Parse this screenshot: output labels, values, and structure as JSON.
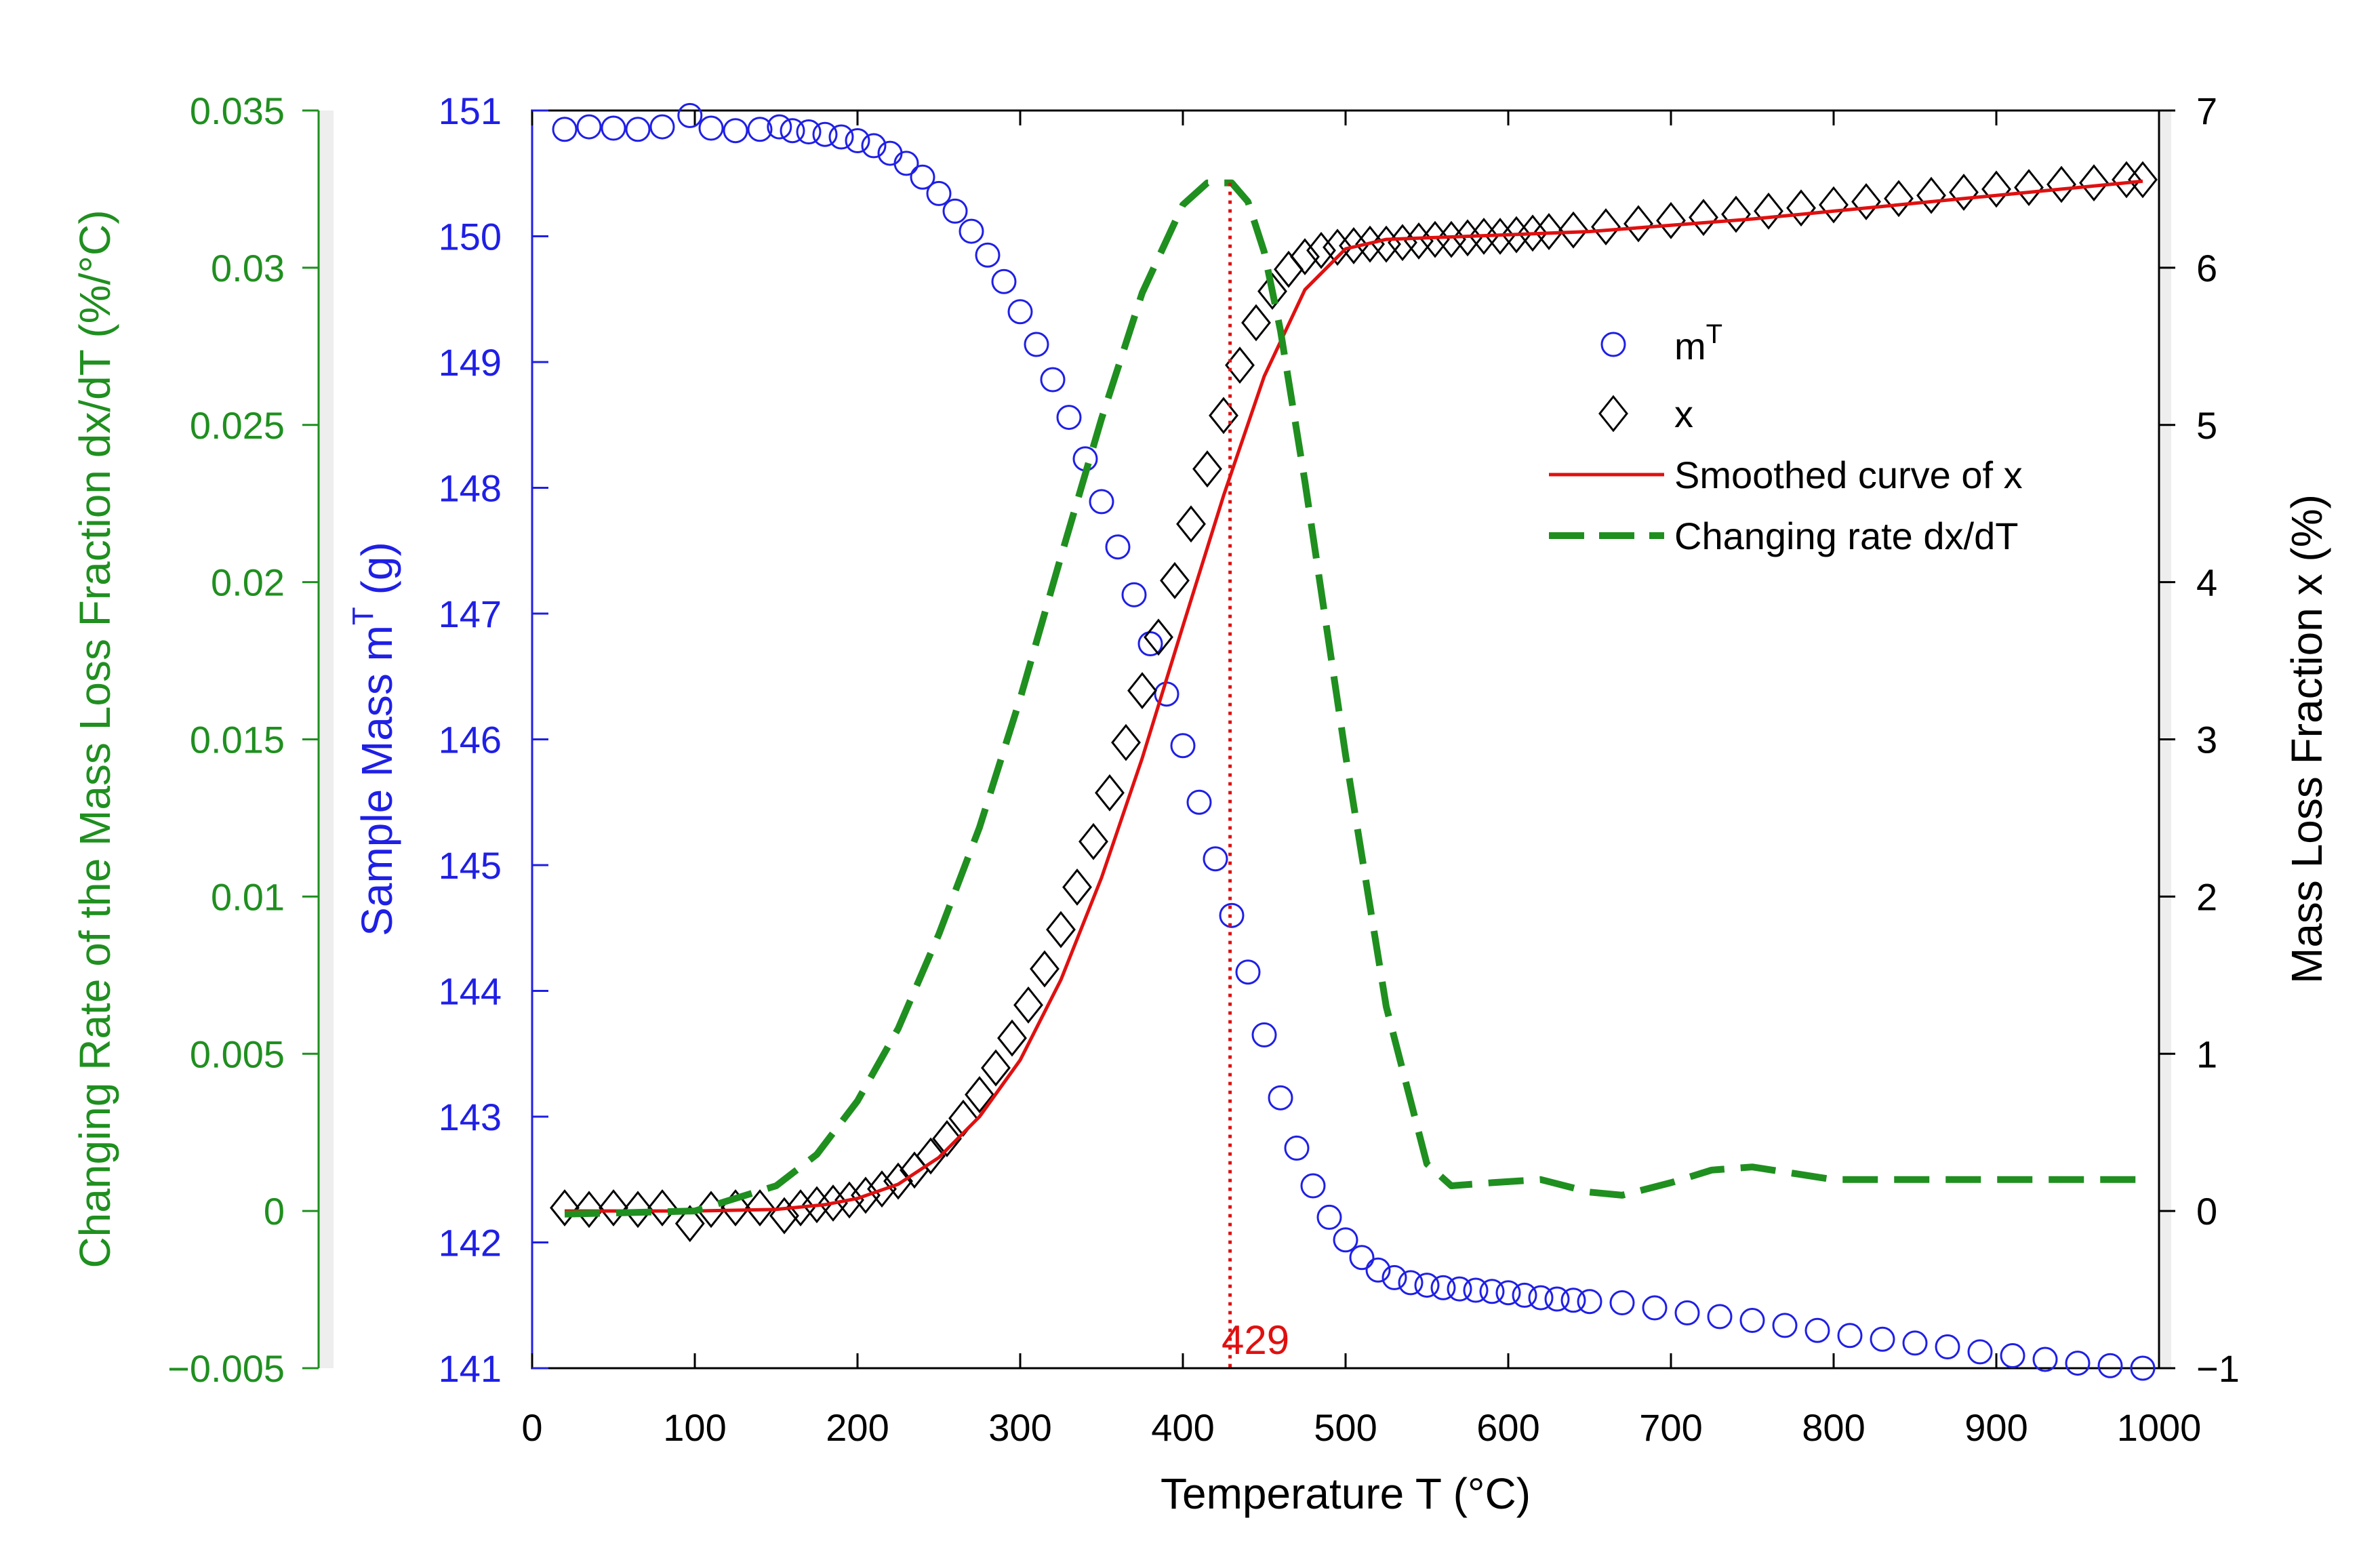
{
  "chart_data": {
    "type": "line",
    "title": "",
    "xlabel": "Temperature T (°C)",
    "xlim": [
      0,
      1000
    ],
    "x_ticks": [
      "0",
      "100",
      "200",
      "300",
      "400",
      "500",
      "600",
      "700",
      "800",
      "900",
      "1000"
    ],
    "axes": {
      "left_outer": {
        "label": "Changing Rate of the Mass Loss Fraction dx/dT (%/°C)",
        "range": [
          -0.005,
          0.035
        ],
        "ticks": [
          "−0.005",
          "0",
          "0.005",
          "0.01",
          "0.015",
          "0.02",
          "0.025",
          "0.03",
          "0.035"
        ],
        "color": "#1f8f1f"
      },
      "left_inner": {
        "label": "Sample Mass m",
        "label_sup": "T",
        "label_tail": " (g)",
        "range": [
          141,
          151
        ],
        "ticks": [
          "141",
          "142",
          "143",
          "144",
          "145",
          "146",
          "147",
          "148",
          "149",
          "150",
          "151"
        ],
        "color": "#1f1fe6"
      },
      "right": {
        "label": "Mass Loss Fraction x (%)",
        "range": [
          -1,
          7
        ],
        "ticks": [
          "−1",
          "0",
          "1",
          "2",
          "3",
          "4",
          "5",
          "6",
          "7"
        ],
        "color": "#000000"
      }
    },
    "series": [
      {
        "name": "m",
        "name_sup": "T",
        "axis": "left_inner",
        "marker": "circle",
        "color": "#1f1fe6",
        "x": [
          20,
          35,
          50,
          65,
          80,
          97,
          110,
          125,
          140,
          152,
          160,
          170,
          180,
          190,
          200,
          210,
          220,
          230,
          240,
          250,
          260,
          270,
          280,
          290,
          300,
          310,
          320,
          330,
          340,
          350,
          360,
          370,
          380,
          390,
          400,
          410,
          420,
          430,
          440,
          450,
          460,
          470,
          480,
          490,
          500,
          510,
          520,
          530,
          540,
          550,
          560,
          570,
          580,
          590,
          600,
          610,
          620,
          630,
          640,
          650,
          670,
          690,
          710,
          730,
          750,
          770,
          790,
          810,
          830,
          850,
          870,
          890,
          910,
          930,
          950,
          970,
          990
        ],
        "values": [
          150.85,
          150.87,
          150.86,
          150.85,
          150.87,
          150.96,
          150.86,
          150.84,
          150.85,
          150.87,
          150.84,
          150.83,
          150.81,
          150.79,
          150.76,
          150.72,
          150.66,
          150.58,
          150.47,
          150.34,
          150.2,
          150.04,
          149.85,
          149.64,
          149.4,
          149.14,
          148.86,
          148.56,
          148.23,
          147.89,
          147.53,
          147.15,
          146.76,
          146.36,
          145.95,
          145.5,
          145.05,
          144.6,
          144.15,
          143.65,
          143.15,
          142.75,
          142.45,
          142.2,
          142.02,
          141.88,
          141.78,
          141.72,
          141.68,
          141.66,
          141.64,
          141.63,
          141.62,
          141.61,
          141.6,
          141.58,
          141.56,
          141.55,
          141.54,
          141.53,
          141.52,
          141.48,
          141.44,
          141.41,
          141.38,
          141.34,
          141.3,
          141.26,
          141.23,
          141.2,
          141.17,
          141.13,
          141.1,
          141.07,
          141.04,
          141.02,
          141.0
        ]
      },
      {
        "name": "x",
        "axis": "right",
        "marker": "diamond",
        "color": "#000000",
        "x": [
          20,
          35,
          50,
          65,
          80,
          97,
          110,
          125,
          140,
          155,
          165,
          175,
          185,
          195,
          205,
          215,
          225,
          235,
          245,
          255,
          265,
          275,
          285,
          295,
          305,
          315,
          325,
          335,
          345,
          355,
          365,
          375,
          385,
          395,
          405,
          415,
          425,
          435,
          445,
          455,
          465,
          475,
          485,
          495,
          505,
          515,
          525,
          535,
          545,
          555,
          565,
          575,
          585,
          595,
          605,
          615,
          625,
          640,
          660,
          680,
          700,
          720,
          740,
          760,
          780,
          800,
          820,
          840,
          860,
          880,
          900,
          920,
          940,
          960,
          980,
          990
        ],
        "values": [
          0.02,
          0.01,
          0.02,
          0.01,
          0.02,
          -0.08,
          0.01,
          0.02,
          0.02,
          -0.03,
          0.02,
          0.04,
          0.05,
          0.07,
          0.1,
          0.14,
          0.19,
          0.26,
          0.35,
          0.46,
          0.59,
          0.74,
          0.91,
          1.1,
          1.31,
          1.54,
          1.79,
          2.06,
          2.35,
          2.66,
          2.98,
          3.31,
          3.65,
          4.01,
          4.37,
          4.72,
          5.06,
          5.38,
          5.65,
          5.85,
          5.99,
          6.07,
          6.11,
          6.13,
          6.14,
          6.15,
          6.15,
          6.16,
          6.17,
          6.18,
          6.18,
          6.19,
          6.2,
          6.2,
          6.21,
          6.22,
          6.23,
          6.24,
          6.26,
          6.28,
          6.3,
          6.32,
          6.34,
          6.36,
          6.38,
          6.4,
          6.42,
          6.44,
          6.46,
          6.48,
          6.5,
          6.51,
          6.53,
          6.54,
          6.56,
          6.56
        ]
      },
      {
        "name": "Smoothed curve of x",
        "axis": "right",
        "style": "solid",
        "color": "#e01010",
        "x": [
          20,
          100,
          150,
          180,
          200,
          225,
          250,
          275,
          300,
          325,
          350,
          375,
          400,
          425,
          450,
          475,
          500,
          525,
          550,
          600,
          650,
          700,
          750,
          800,
          850,
          900,
          950,
          990
        ],
        "values": [
          0.0,
          0.0,
          0.01,
          0.04,
          0.08,
          0.17,
          0.34,
          0.6,
          0.96,
          1.47,
          2.12,
          2.88,
          3.72,
          4.55,
          5.31,
          5.86,
          6.12,
          6.18,
          6.19,
          6.21,
          6.23,
          6.27,
          6.31,
          6.36,
          6.41,
          6.46,
          6.51,
          6.55
        ]
      },
      {
        "name": "Changing rate dx/dT",
        "axis": "left_outer",
        "style": "dashed",
        "color": "#1f8f1f",
        "x": [
          20,
          100,
          150,
          175,
          200,
          225,
          250,
          275,
          300,
          325,
          350,
          375,
          400,
          415,
          430,
          440,
          450,
          460,
          475,
          500,
          525,
          550,
          565,
          590,
          620,
          650,
          670,
          700,
          725,
          750,
          775,
          800,
          850,
          900,
          950,
          990
        ],
        "values": [
          -0.0001,
          0.0,
          0.0008,
          0.0018,
          0.0035,
          0.0058,
          0.0088,
          0.0122,
          0.0163,
          0.0208,
          0.0252,
          0.0292,
          0.032,
          0.0327,
          0.0327,
          0.0321,
          0.0305,
          0.028,
          0.0232,
          0.0145,
          0.0065,
          0.0015,
          0.0008,
          0.0009,
          0.001,
          0.0006,
          0.0005,
          0.0009,
          0.0013,
          0.0014,
          0.0012,
          0.001,
          0.001,
          0.001,
          0.001,
          0.001
        ]
      }
    ],
    "annotation": {
      "text": "429",
      "x": 429,
      "style": "dotted",
      "color": "#e01010"
    },
    "legend": {
      "position": "top-right (inside)",
      "entries": [
        "m",
        "x",
        "Smoothed curve of x",
        "Changing rate dx/dT"
      ],
      "m_sup": "T"
    }
  }
}
